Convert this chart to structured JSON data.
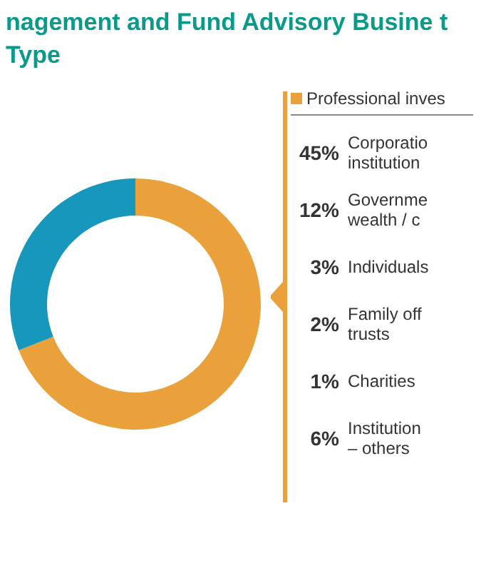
{
  "chart_data": {
    "type": "donut",
    "title": "nagement and Fund Advisory Busine t Type",
    "categories": [
      "Professional inves",
      null
    ],
    "values": [
      69,
      31
    ],
    "colors": [
      "#eaa13b",
      "#1897bd"
    ],
    "annotations": [
      "45%",
      "Corporatio\ninstitution",
      "12%",
      "Governme\nwealth / c",
      "3%",
      "Individuals",
      "2%",
      "Family off\ntrusts",
      "1%",
      "Charities",
      "6%",
      "Institution\n– others"
    ]
  }
}
